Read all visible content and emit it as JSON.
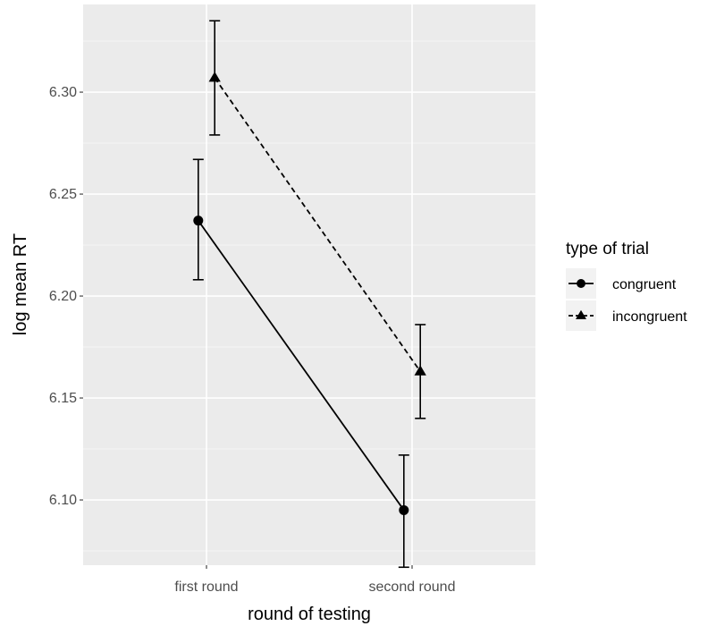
{
  "chart_data": {
    "type": "line",
    "title": "",
    "xlabel": "round of testing",
    "ylabel": "log mean RT",
    "categories": [
      "first round",
      "second round"
    ],
    "ylim": [
      6.068,
      6.343
    ],
    "yticks": [
      6.1,
      6.15,
      6.2,
      6.25,
      6.3
    ],
    "ytick_labels": [
      "6.10",
      "6.15",
      "6.20",
      "6.25",
      "6.30"
    ],
    "grid": true,
    "legend": {
      "title": "type of trial",
      "position": "right"
    },
    "series": [
      {
        "name": "congruent",
        "marker": "circle",
        "line_style": "solid",
        "color": "#000000",
        "x_offset": -0.04,
        "values": [
          6.237,
          6.095
        ],
        "error_low": [
          6.208,
          6.067
        ],
        "error_high": [
          6.267,
          6.122
        ]
      },
      {
        "name": "incongruent",
        "marker": "triangle",
        "line_style": "dashed",
        "color": "#000000",
        "x_offset": 0.04,
        "values": [
          6.307,
          6.163
        ],
        "error_low": [
          6.279,
          6.14
        ],
        "error_high": [
          6.335,
          6.186
        ]
      }
    ]
  },
  "colors": {
    "panel_background": "#ebebeb",
    "grid_major": "#ffffff",
    "grid_minor": "#f4f4f4"
  }
}
